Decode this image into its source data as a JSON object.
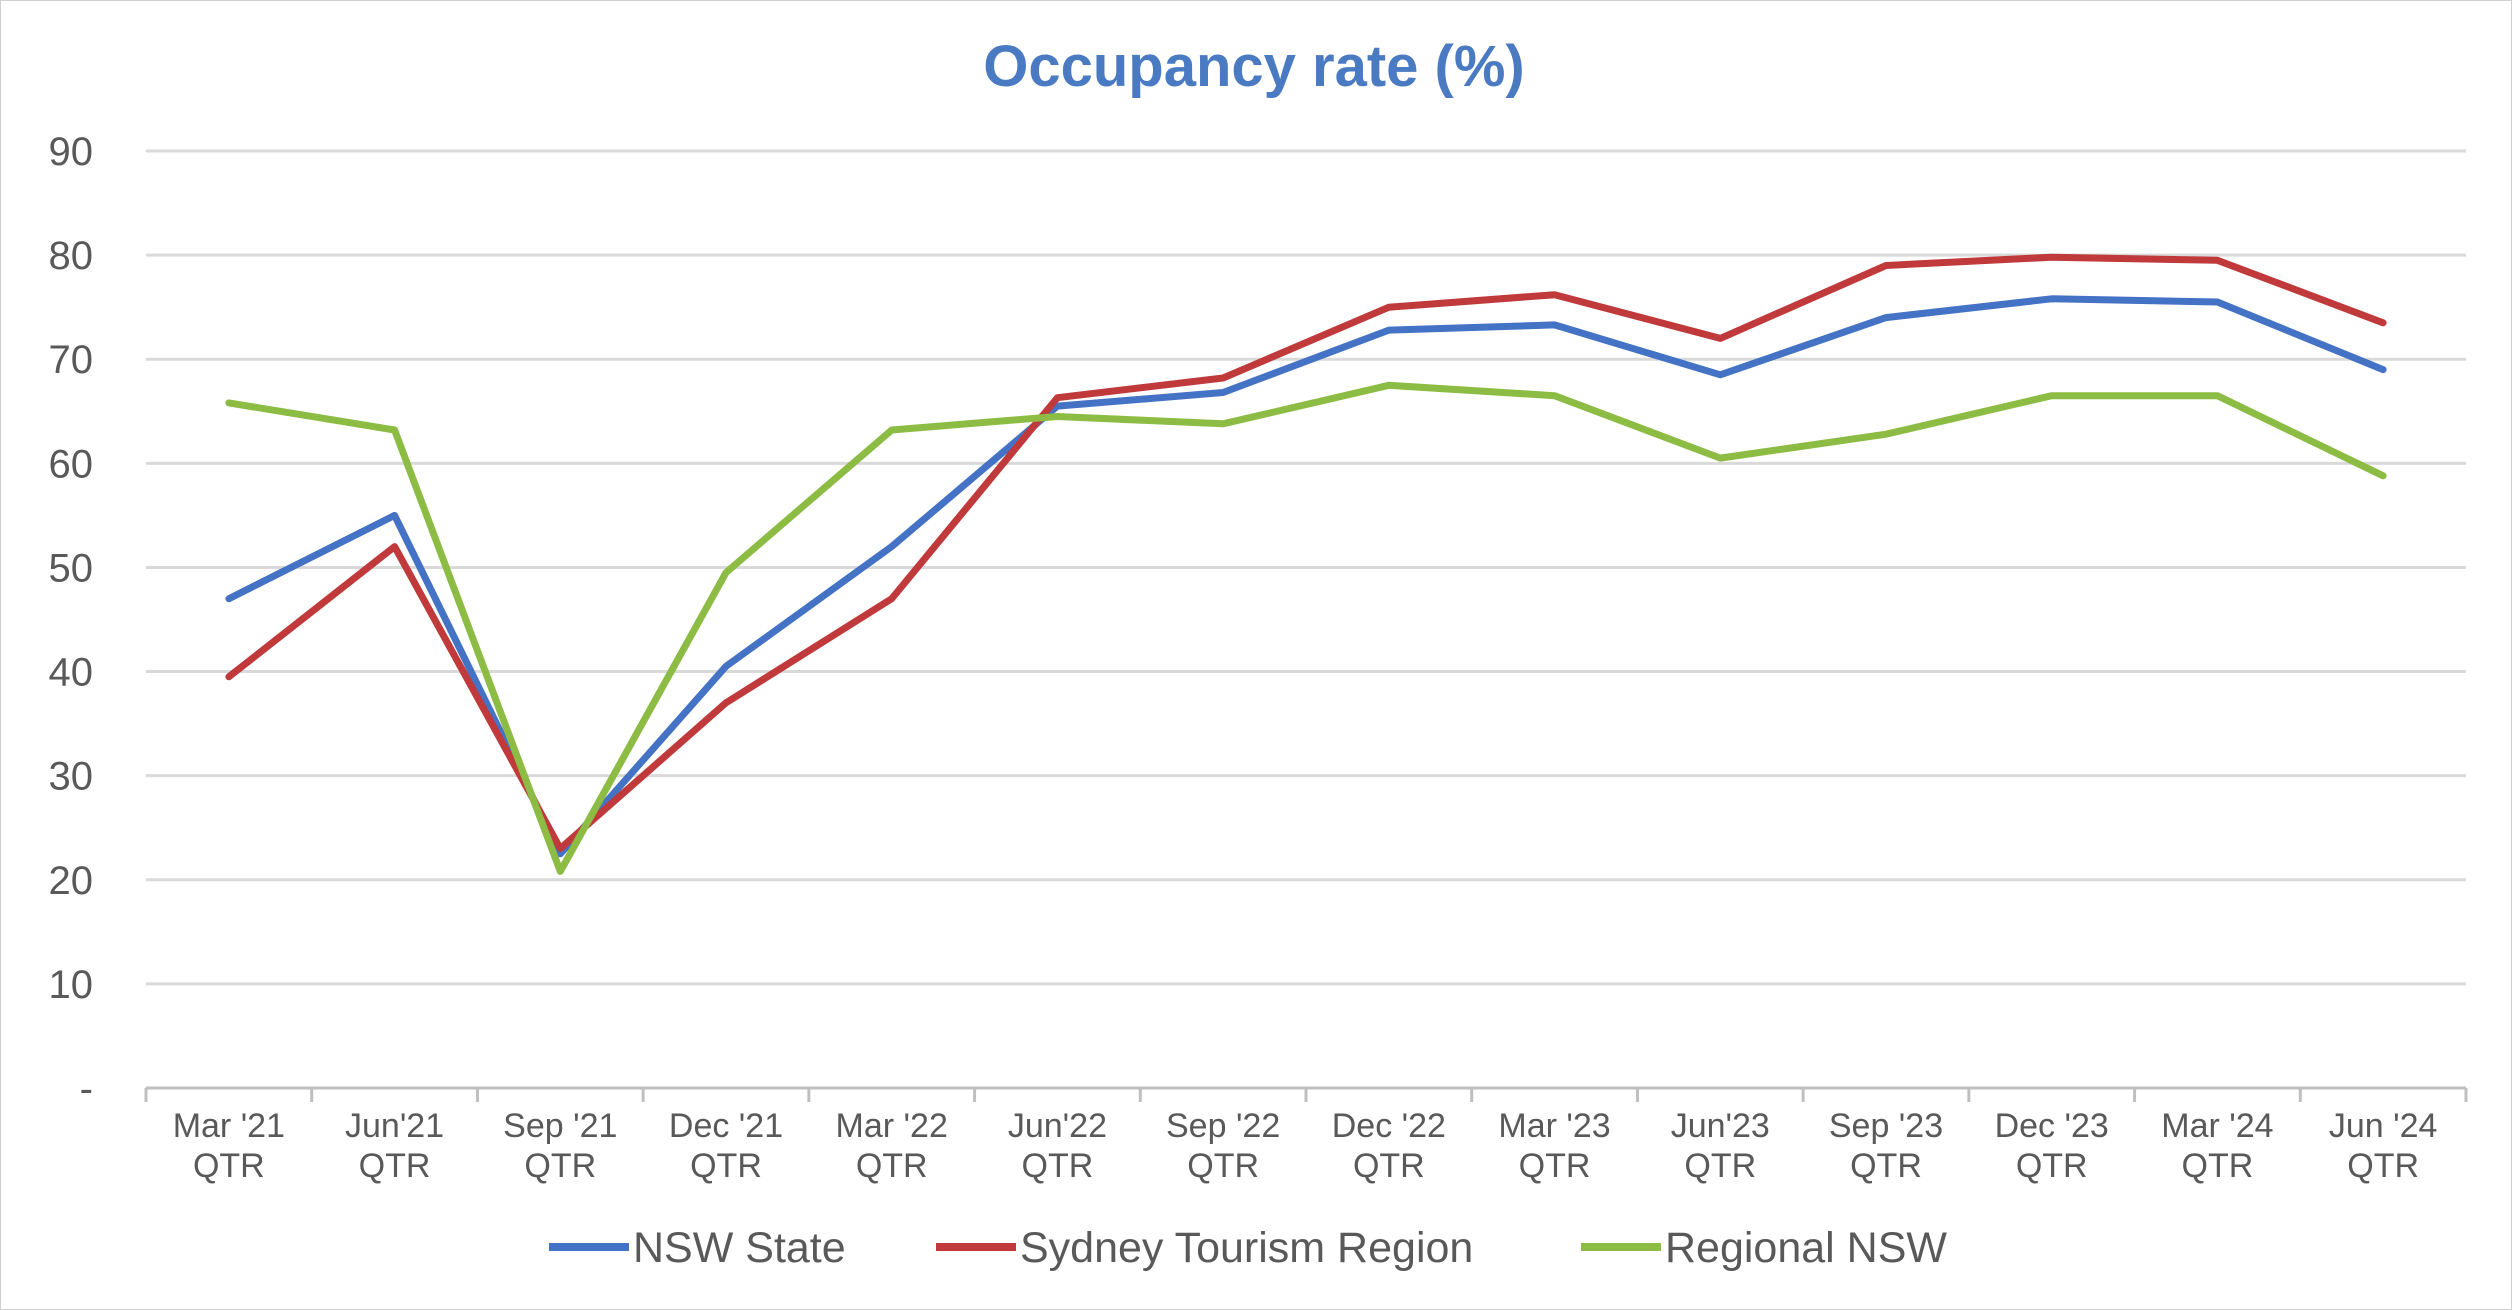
{
  "chart_data": {
    "type": "line",
    "title": "Occupancy rate (%)",
    "xlabel": "",
    "ylabel": "",
    "ylim": [
      0,
      90
    ],
    "yticks": [
      {
        "value": 0,
        "label": "-"
      },
      {
        "value": 10,
        "label": "10"
      },
      {
        "value": 20,
        "label": "20"
      },
      {
        "value": 30,
        "label": "30"
      },
      {
        "value": 40,
        "label": "40"
      },
      {
        "value": 50,
        "label": "50"
      },
      {
        "value": 60,
        "label": "60"
      },
      {
        "value": 70,
        "label": "70"
      },
      {
        "value": 80,
        "label": "80"
      },
      {
        "value": 90,
        "label": "90"
      }
    ],
    "categories": [
      [
        "Mar '21",
        "QTR"
      ],
      [
        "Jun'21",
        "QTR"
      ],
      [
        "Sep '21",
        "QTR"
      ],
      [
        "Dec '21",
        "QTR"
      ],
      [
        "Mar '22",
        "QTR"
      ],
      [
        "Jun'22",
        "QTR"
      ],
      [
        "Sep '22",
        "QTR"
      ],
      [
        "Dec '22",
        "QTR"
      ],
      [
        "Mar '23",
        "QTR"
      ],
      [
        "Jun'23",
        "QTR"
      ],
      [
        "Sep '23",
        "QTR"
      ],
      [
        "Dec '23",
        "QTR"
      ],
      [
        "Mar '24",
        "QTR"
      ],
      [
        "Jun '24",
        "QTR"
      ]
    ],
    "grid": true,
    "legend_position": "bottom",
    "series": [
      {
        "name": "NSW State",
        "color": "#4472c4",
        "values": [
          47,
          55,
          22.5,
          40.5,
          52,
          65.5,
          66.8,
          72.8,
          73.3,
          68.5,
          74,
          75.8,
          75.5,
          69
        ]
      },
      {
        "name": "Sydney Tourism Region",
        "color": "#c0393b",
        "values": [
          39.5,
          52,
          23,
          37,
          47,
          66.3,
          68.2,
          75,
          76.2,
          72,
          79,
          79.8,
          79.5,
          73.5
        ]
      },
      {
        "name": "Regional NSW",
        "color": "#8cbc43",
        "values": [
          65.8,
          63.2,
          20.8,
          49.5,
          63.2,
          64.5,
          63.8,
          67.5,
          66.5,
          60.5,
          62.8,
          66.5,
          66.5,
          58.8
        ]
      }
    ]
  }
}
